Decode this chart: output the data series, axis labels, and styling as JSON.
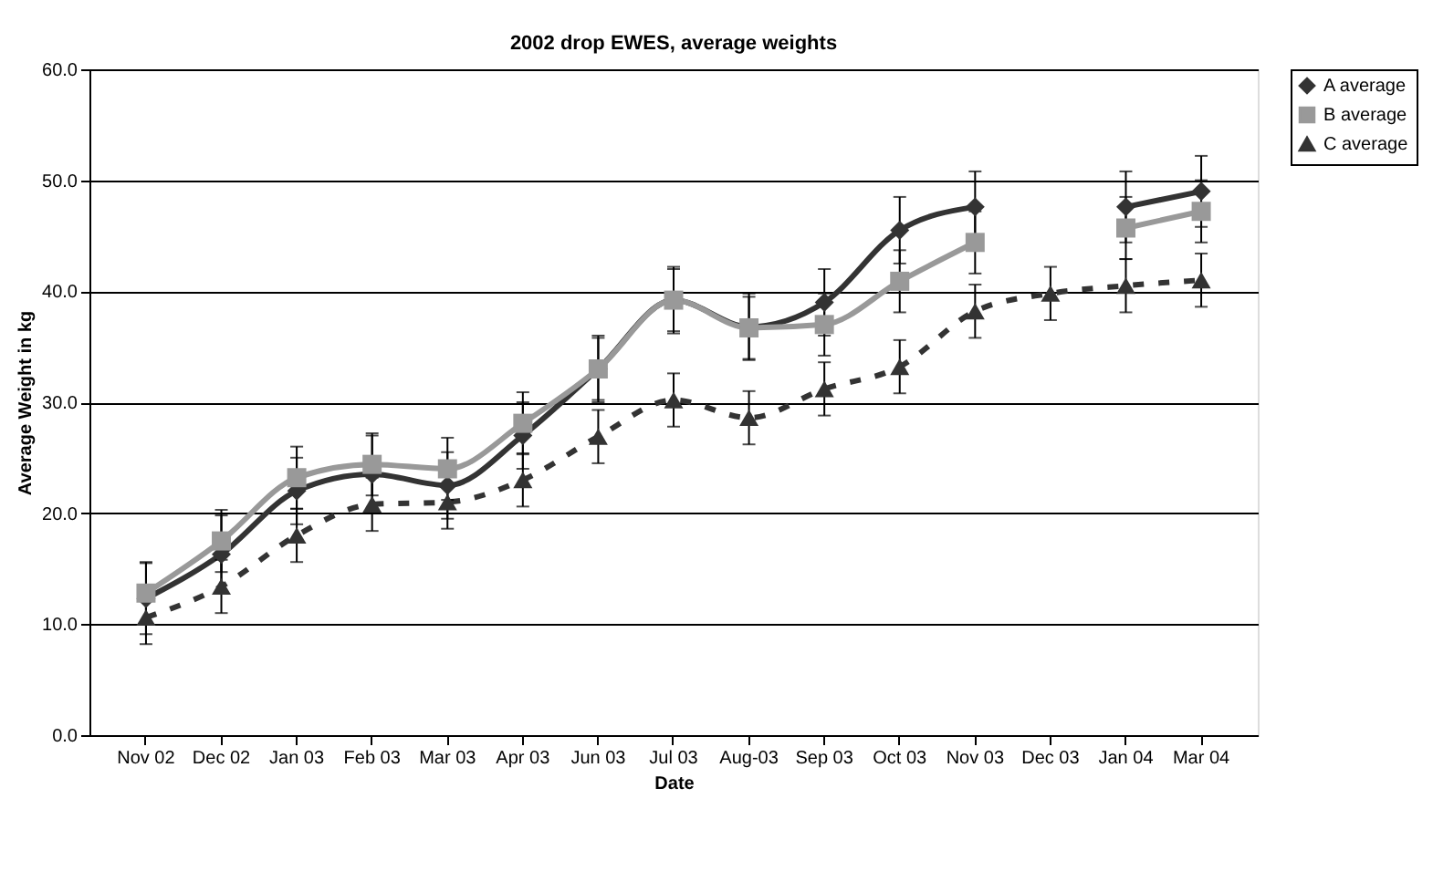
{
  "chart_data": {
    "type": "line",
    "title": "2002 drop EWES, average weights",
    "xlabel": "Date",
    "ylabel": "Average Weight in kg",
    "categories": [
      "Nov 02",
      "Dec 02",
      "Jan 03",
      "Feb 03",
      "Mar 03",
      "Apr 03",
      "Jun 03",
      "Jul 03",
      "Aug-03",
      "Sep 03",
      "Oct 03",
      "Nov 03",
      "Dec 03",
      "Jan 04",
      "Mar 04"
    ],
    "series": [
      {
        "name": "A average",
        "color": "#333333",
        "marker": "diamond",
        "line_style": "solid",
        "values": [
          12.3,
          16.3,
          22.0,
          23.5,
          22.5,
          27.0,
          33.0,
          39.2,
          36.8,
          39.0,
          45.5,
          47.6,
          null,
          47.6,
          49.0
        ],
        "errors": [
          3.2,
          3.5,
          3.0,
          3.5,
          3.0,
          3.0,
          3.0,
          3.0,
          3.0,
          3.0,
          3.0,
          3.2,
          null,
          3.2,
          3.2
        ]
      },
      {
        "name": "B average",
        "color": "#999999",
        "marker": "square",
        "line_style": "solid",
        "values": [
          12.8,
          17.5,
          23.2,
          24.4,
          24.0,
          28.1,
          33.0,
          39.2,
          36.7,
          37.0,
          40.9,
          44.4,
          null,
          45.7,
          47.2
        ],
        "errors": [
          2.8,
          2.8,
          2.8,
          2.8,
          2.8,
          2.8,
          2.8,
          2.8,
          2.8,
          2.8,
          2.8,
          2.8,
          null,
          2.8,
          2.8
        ]
      },
      {
        "name": "C average",
        "color": "#333333",
        "marker": "triangle",
        "line_style": "dashed",
        "values": [
          10.6,
          13.4,
          18.0,
          20.8,
          21.0,
          23.0,
          26.9,
          30.2,
          28.6,
          31.2,
          33.2,
          38.2,
          39.8,
          40.5,
          41.0
        ],
        "errors": [
          2.4,
          2.4,
          2.4,
          2.4,
          2.4,
          2.4,
          2.4,
          2.4,
          2.4,
          2.4,
          2.4,
          2.4,
          2.4,
          2.4,
          2.4
        ]
      }
    ],
    "ylim": [
      0,
      60
    ],
    "yticks": [
      {
        "value": 0,
        "label": "0.0"
      },
      {
        "value": 10,
        "label": "10.0"
      },
      {
        "value": 20,
        "label": "20.0"
      },
      {
        "value": 30,
        "label": "30.0"
      },
      {
        "value": 40,
        "label": "40.0"
      },
      {
        "value": 50,
        "label": "50.0"
      },
      {
        "value": 60,
        "label": "60.0"
      }
    ],
    "grid": "y",
    "legend": "right"
  }
}
